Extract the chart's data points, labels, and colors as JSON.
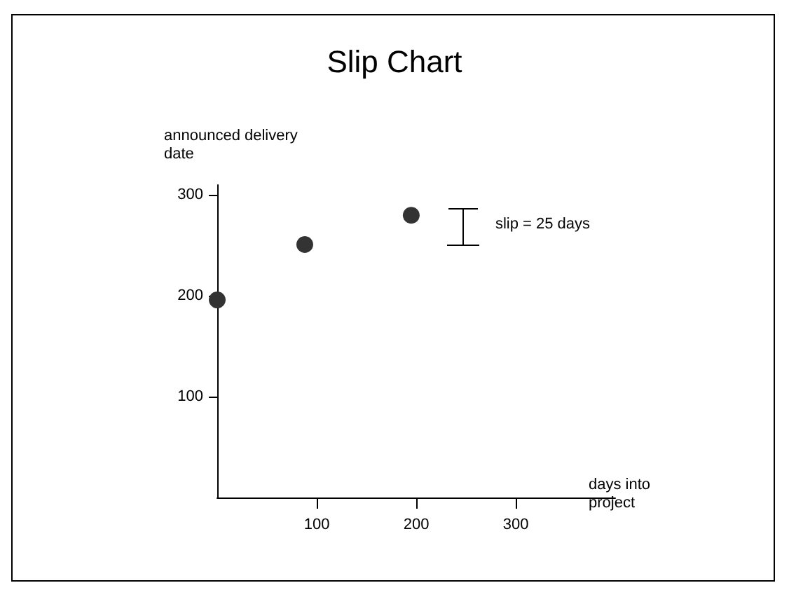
{
  "chart_data": {
    "type": "scatter",
    "title": "Slip Chart",
    "xlabel": "days into project",
    "ylabel": "announced delivery date",
    "x": [
      0,
      88,
      195
    ],
    "series": [
      {
        "color": "#333333",
        "values": [
          196,
          251,
          280
        ]
      }
    ],
    "xlim": [
      0,
      400
    ],
    "xticks": [
      100,
      200,
      300
    ],
    "ylim": [
      0,
      310
    ],
    "yticks": [
      100,
      200,
      300
    ],
    "annotations": [
      "slip = 25 days"
    ],
    "grid": false,
    "marker": "circle"
  }
}
